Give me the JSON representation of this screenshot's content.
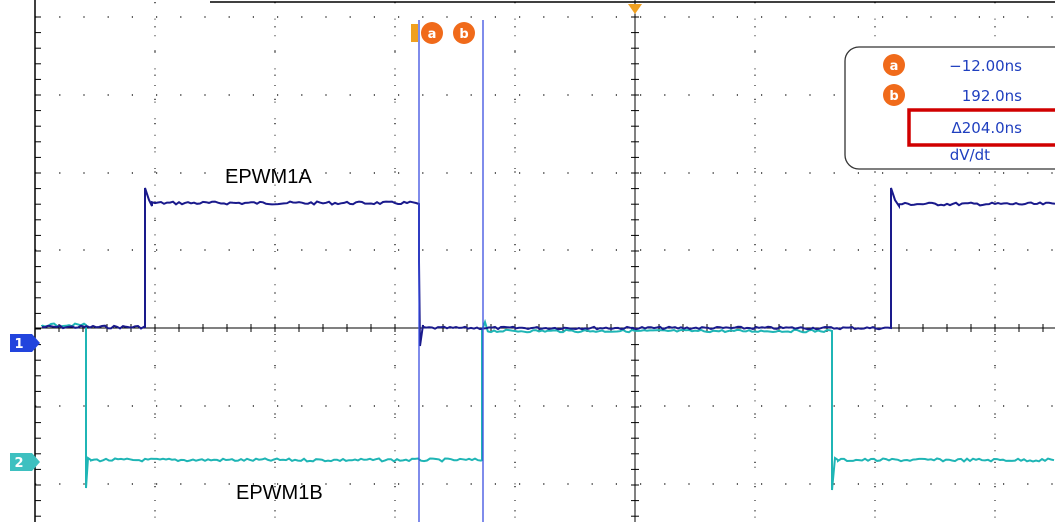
{
  "colors": {
    "channel1": "#1a1a8c",
    "channel2": "#1fb5b5",
    "cursor": "#3b4fe0",
    "cursor_marker": "#f06a1a",
    "trigger_marker": "#f0a020",
    "highlight_box": "#d00000",
    "grid": "#000000"
  },
  "traces": {
    "channel1": {
      "name": "EPWM1A",
      "marker": "1"
    },
    "channel2": {
      "name": "EPWM1B",
      "marker": "2"
    }
  },
  "cursors": {
    "a": {
      "marker": "a",
      "time": "−12.00ns"
    },
    "b": {
      "marker": "b",
      "time": "192.0ns"
    }
  },
  "readout": {
    "a_value": "−12.00ns",
    "b_value": "192.0ns",
    "delta_value": "Δ204.0ns",
    "mode": "dV/dt",
    "a_icon": "cursor-a-icon",
    "b_icon": "cursor-b-icon"
  }
}
